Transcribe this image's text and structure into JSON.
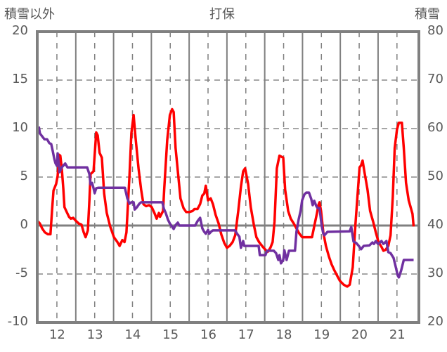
{
  "chart_data": {
    "type": "line",
    "title": "打保",
    "ylabel_left": "積雪以外",
    "ylabel_right": "積雪",
    "xlim": [
      11.48,
      21.58
    ],
    "ylim_left": [
      -10,
      20
    ],
    "ylim_right": [
      20,
      80
    ],
    "x_ticks": [
      "12",
      "13",
      "14",
      "15",
      "16",
      "17",
      "18",
      "19",
      "20",
      "21"
    ],
    "y_ticks_left": [
      "20",
      "15",
      "10",
      "5",
      "0",
      "-5",
      "-10"
    ],
    "y_ticks_right": [
      "80",
      "70",
      "60",
      "50",
      "40",
      "30",
      "20"
    ],
    "grid": true,
    "series": [
      {
        "name": "積雪以外",
        "axis": "left",
        "color": "#ff0000",
        "x": [
          11.48,
          11.55,
          11.61,
          11.68,
          11.76,
          11.83,
          11.87,
          11.91,
          11.98,
          12.02,
          12.06,
          12.09,
          12.13,
          12.17,
          12.2,
          12.26,
          12.32,
          12.37,
          12.43,
          12.5,
          12.58,
          12.65,
          12.71,
          12.76,
          12.82,
          12.86,
          12.89,
          12.97,
          13.04,
          13.08,
          13.13,
          13.19,
          13.25,
          13.32,
          13.41,
          13.51,
          13.6,
          13.66,
          13.73,
          13.79,
          13.84,
          13.92,
          13.97,
          14.03,
          14.08,
          14.16,
          14.23,
          14.29,
          14.36,
          14.44,
          14.51,
          14.58,
          14.64,
          14.7,
          14.73,
          14.81,
          14.84,
          14.92,
          14.99,
          15.05,
          15.09,
          15.14,
          15.22,
          15.27,
          15.35,
          15.42,
          15.51,
          15.59,
          15.64,
          15.72,
          15.79,
          15.85,
          15.9,
          15.94,
          16.0,
          16.07,
          16.13,
          16.2,
          16.28,
          16.35,
          16.43,
          16.5,
          16.57,
          16.65,
          16.72,
          16.8,
          16.87,
          16.93,
          16.98,
          17.06,
          17.13,
          17.21,
          17.28,
          17.35,
          17.45,
          17.52,
          17.58,
          17.65,
          17.71,
          17.76,
          17.82,
          17.89,
          17.99,
          18.04,
          18.12,
          18.19,
          18.27,
          18.34,
          18.41,
          18.49,
          18.58,
          18.67,
          18.75,
          18.82,
          18.88,
          18.92,
          18.95,
          18.99,
          19.05,
          19.12,
          19.2,
          19.27,
          19.34,
          19.42,
          19.49,
          19.59,
          19.68,
          19.75,
          19.83,
          19.9,
          19.98,
          20.01,
          20.05,
          20.09,
          20.14,
          20.22,
          20.29,
          20.37,
          20.44,
          20.51,
          20.59,
          20.64,
          20.7,
          20.77,
          20.83,
          20.89,
          20.94,
          21.0,
          21.05,
          21.13,
          21.18,
          21.24,
          21.31,
          21.41,
          21.44
        ],
        "y": [
          0.5,
          0.2,
          -0.3,
          -0.7,
          -0.9,
          -0.9,
          1.5,
          3.6,
          4.3,
          5.1,
          7.3,
          7.2,
          5.9,
          3.8,
          1.9,
          1.4,
          0.9,
          0.7,
          0.8,
          0.5,
          0.2,
          0.1,
          -0.7,
          -1.2,
          -0.5,
          2.6,
          5.3,
          5.6,
          9.6,
          9.3,
          7.5,
          7.0,
          3.3,
          1.3,
          -0.1,
          -1.2,
          -1.7,
          -2.1,
          -1.5,
          -1.7,
          -0.7,
          5.1,
          9.5,
          11.4,
          9.1,
          5.9,
          3.7,
          2.2,
          2.0,
          2.1,
          1.9,
          1.3,
          0.7,
          1.3,
          0.9,
          1.5,
          3.7,
          8.8,
          11.4,
          12.0,
          11.7,
          8.0,
          4.8,
          2.8,
          1.8,
          1.4,
          1.4,
          1.5,
          1.7,
          1.7,
          2.2,
          3.1,
          3.3,
          4.1,
          2.6,
          2.8,
          2.2,
          1.1,
          0.2,
          -0.9,
          -1.8,
          -2.3,
          -2.1,
          -1.7,
          -1.0,
          1.5,
          4.0,
          5.6,
          5.9,
          4.3,
          1.9,
          0.1,
          -1.2,
          -1.7,
          -2.2,
          -2.5,
          -2.7,
          -2.3,
          -1.7,
          0.4,
          5.9,
          7.2,
          7.0,
          3.7,
          1.5,
          0.7,
          0.2,
          -0.3,
          -0.8,
          -1.2,
          -1.2,
          -1.2,
          -1.2,
          0.1,
          1.2,
          2.1,
          2.4,
          1.5,
          -0.7,
          -2.1,
          -3.2,
          -4.0,
          -4.6,
          -5.2,
          -5.7,
          -6.1,
          -6.3,
          -6.1,
          -4.3,
          0.1,
          4.4,
          6.0,
          6.2,
          6.7,
          5.5,
          3.7,
          1.5,
          0.4,
          -0.7,
          -1.7,
          -2.2,
          -2.6,
          -2.5,
          -2.1,
          -1.0,
          3.0,
          8.0,
          9.9,
          10.6,
          10.6,
          8.0,
          4.4,
          2.6,
          1.2,
          -0.1
        ]
      },
      {
        "name": "積雪",
        "axis": "right",
        "color": "#7030a0",
        "x": [
          11.52,
          11.55,
          11.67,
          11.74,
          11.8,
          11.85,
          11.89,
          11.93,
          11.96,
          12.0,
          12.02,
          12.06,
          12.07,
          12.13,
          12.22,
          12.28,
          12.8,
          12.86,
          12.89,
          12.93,
          12.97,
          13.0,
          13.04,
          13.1,
          13.8,
          13.86,
          13.92,
          13.97,
          14.03,
          14.06,
          14.12,
          14.18,
          14.23,
          14.79,
          14.83,
          14.88,
          14.94,
          14.99,
          15.09,
          15.14,
          15.2,
          15.24,
          15.66,
          15.72,
          15.79,
          15.85,
          15.9,
          15.94,
          16.0,
          16.03,
          16.09,
          16.13,
          16.72,
          16.76,
          16.83,
          16.87,
          16.93,
          16.96,
          17.34,
          17.37,
          17.52,
          17.56,
          17.74,
          17.8,
          17.86,
          17.89,
          17.93,
          17.99,
          18.02,
          18.08,
          18.14,
          18.3,
          18.34,
          18.4,
          18.45,
          18.49,
          18.55,
          18.6,
          18.67,
          18.73,
          18.77,
          18.81,
          18.86,
          18.9,
          18.95,
          19.01,
          19.05,
          19.08,
          19.16,
          19.75,
          19.79,
          19.85,
          19.92,
          19.99,
          20.05,
          20.12,
          20.27,
          20.35,
          20.39,
          20.44,
          20.5,
          20.55,
          20.59,
          20.64,
          20.72,
          20.77,
          20.83,
          20.91,
          20.96,
          21.02,
          21.05,
          21.11,
          21.18,
          21.44
        ],
        "y": [
          60.4,
          59.0,
          57.8,
          57.8,
          57.0,
          56.8,
          55.4,
          53.8,
          52.9,
          52.3,
          54.9,
          52.0,
          51.0,
          52.0,
          52.8,
          52.0,
          52.0,
          50.6,
          48.5,
          48.8,
          47.7,
          46.7,
          47.7,
          47.8,
          47.8,
          45.7,
          44.5,
          44.8,
          44.8,
          43.3,
          43.8,
          44.5,
          44.8,
          44.8,
          43.5,
          42.6,
          41.2,
          40.4,
          39.3,
          40.1,
          40.6,
          40.0,
          40.0,
          40.9,
          41.6,
          39.4,
          38.7,
          38.3,
          39.1,
          38.3,
          38.8,
          39.0,
          39.0,
          38.4,
          37.7,
          35.4,
          36.8,
          35.8,
          35.8,
          33.9,
          33.9,
          34.8,
          34.8,
          34.3,
          32.9,
          33.9,
          32.2,
          32.9,
          34.9,
          32.9,
          34.8,
          34.8,
          38.7,
          41.3,
          43.0,
          45.2,
          46.4,
          46.8,
          46.8,
          45.5,
          44.2,
          45.1,
          44.1,
          43.6,
          43.6,
          39.9,
          38.3,
          38.0,
          38.7,
          38.8,
          39.7,
          36.7,
          36.4,
          35.8,
          35.1,
          35.8,
          35.9,
          36.5,
          36.2,
          36.8,
          36.2,
          36.5,
          36.8,
          36.2,
          36.8,
          34.5,
          34.3,
          33.3,
          31.7,
          29.7,
          29.3,
          30.7,
          32.9,
          32.9
        ]
      }
    ]
  }
}
